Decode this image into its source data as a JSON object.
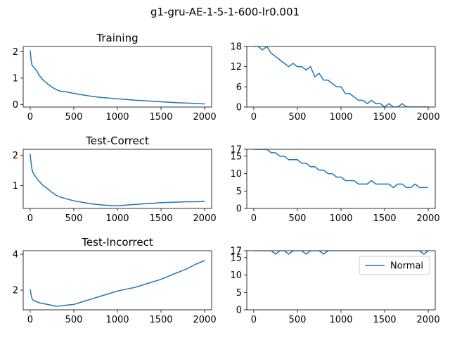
{
  "suptitle": "g1-gru-AE-1-5-1-600-lr0.001",
  "series_color": "#1f77b4",
  "legend": {
    "label": "Normal",
    "placement": "upper right",
    "panel": 5
  },
  "chart_data": [
    {
      "type": "line",
      "title": "Training",
      "xlim": [
        -80,
        2080
      ],
      "ylim": [
        -0.1,
        2.2
      ],
      "xticks": [
        0,
        500,
        1000,
        1500,
        2000
      ],
      "yticks": [
        0,
        1,
        2
      ],
      "x": [
        0,
        10,
        20,
        30,
        50,
        75,
        100,
        150,
        200,
        250,
        300,
        350,
        400,
        450,
        500,
        600,
        700,
        800,
        900,
        1000,
        1100,
        1200,
        1300,
        1400,
        1500,
        1600,
        1700,
        1800,
        1900,
        2000
      ],
      "y": [
        2.05,
        1.7,
        1.5,
        1.45,
        1.38,
        1.28,
        1.12,
        0.92,
        0.78,
        0.66,
        0.56,
        0.5,
        0.48,
        0.45,
        0.42,
        0.36,
        0.31,
        0.27,
        0.24,
        0.21,
        0.19,
        0.16,
        0.14,
        0.12,
        0.1,
        0.08,
        0.06,
        0.05,
        0.03,
        0.02
      ]
    },
    {
      "type": "line",
      "title": "",
      "xlim": [
        -80,
        2080
      ],
      "ylim": [
        0,
        18
      ],
      "xticks": [
        0,
        500,
        1000,
        1500,
        2000
      ],
      "yticks": [
        0,
        6,
        12,
        18
      ],
      "x": [
        0,
        50,
        100,
        150,
        200,
        250,
        300,
        350,
        400,
        450,
        500,
        550,
        600,
        650,
        700,
        750,
        800,
        850,
        900,
        950,
        1000,
        1050,
        1100,
        1150,
        1200,
        1250,
        1300,
        1350,
        1400,
        1450,
        1500,
        1550,
        1600,
        1650,
        1700,
        1750,
        1800,
        1850,
        1900,
        1950,
        2000
      ],
      "y": [
        18,
        18,
        17,
        18,
        16,
        15,
        14,
        13,
        12,
        13,
        12,
        12,
        11,
        12,
        9,
        10,
        8,
        8,
        7,
        6,
        6,
        4,
        4,
        3,
        2,
        2,
        1,
        2,
        1,
        1,
        0,
        1,
        0,
        0,
        1,
        0,
        0,
        0,
        0,
        0,
        0
      ]
    },
    {
      "type": "line",
      "title": "Test-Correct",
      "xlim": [
        -80,
        2080
      ],
      "ylim": [
        0.25,
        2.2
      ],
      "xticks": [
        0,
        500,
        1000,
        1500,
        2000
      ],
      "yticks": [
        1,
        2
      ],
      "x": [
        0,
        10,
        20,
        30,
        50,
        75,
        100,
        150,
        200,
        250,
        300,
        350,
        400,
        450,
        500,
        600,
        700,
        800,
        900,
        1000,
        1100,
        1200,
        1300,
        1400,
        1500,
        1600,
        1700,
        1800,
        1900,
        2000
      ],
      "y": [
        2.05,
        1.75,
        1.55,
        1.45,
        1.35,
        1.25,
        1.15,
        1.0,
        0.9,
        0.78,
        0.68,
        0.62,
        0.58,
        0.54,
        0.5,
        0.45,
        0.4,
        0.37,
        0.35,
        0.34,
        0.36,
        0.38,
        0.4,
        0.42,
        0.44,
        0.45,
        0.46,
        0.47,
        0.47,
        0.48
      ]
    },
    {
      "type": "line",
      "title": "",
      "xlim": [
        -80,
        2080
      ],
      "ylim": [
        0,
        17
      ],
      "xticks": [
        0,
        500,
        1000,
        1500,
        2000
      ],
      "yticks": [
        0,
        5,
        10,
        15,
        17
      ],
      "x": [
        0,
        50,
        100,
        150,
        200,
        250,
        300,
        350,
        400,
        450,
        500,
        550,
        600,
        650,
        700,
        750,
        800,
        850,
        900,
        950,
        1000,
        1050,
        1100,
        1150,
        1200,
        1250,
        1300,
        1350,
        1400,
        1450,
        1500,
        1550,
        1600,
        1650,
        1700,
        1750,
        1800,
        1850,
        1900,
        1950,
        2000
      ],
      "y": [
        17,
        17,
        17,
        17,
        16,
        16,
        15,
        15,
        14,
        14,
        14,
        13,
        13,
        12,
        12,
        11,
        11,
        10,
        10,
        9,
        9,
        8,
        8,
        8,
        7,
        7,
        7,
        8,
        7,
        7,
        7,
        7,
        6,
        7,
        7,
        6,
        6,
        7,
        6,
        6,
        6
      ]
    },
    {
      "type": "line",
      "title": "Test-Incorrect",
      "xlim": [
        -80,
        2080
      ],
      "ylim": [
        0.9,
        4.2
      ],
      "xticks": [
        0,
        500,
        1000,
        1500,
        2000
      ],
      "yticks": [
        2,
        4
      ],
      "x": [
        0,
        10,
        20,
        30,
        50,
        75,
        100,
        150,
        200,
        250,
        300,
        350,
        400,
        450,
        500,
        600,
        700,
        800,
        900,
        1000,
        1100,
        1200,
        1300,
        1400,
        1500,
        1600,
        1700,
        1800,
        1900,
        2000
      ],
      "y": [
        2.05,
        1.75,
        1.55,
        1.45,
        1.4,
        1.35,
        1.3,
        1.25,
        1.2,
        1.15,
        1.1,
        1.12,
        1.15,
        1.18,
        1.2,
        1.35,
        1.5,
        1.65,
        1.8,
        1.95,
        2.05,
        2.15,
        2.3,
        2.45,
        2.6,
        2.8,
        3.0,
        3.2,
        3.45,
        3.65
      ]
    },
    {
      "type": "line",
      "title": "",
      "xlim": [
        -80,
        2080
      ],
      "ylim": [
        0,
        17
      ],
      "xticks": [
        0,
        500,
        1000,
        1500,
        2000
      ],
      "yticks": [
        0,
        5,
        10,
        15,
        17
      ],
      "x": [
        0,
        50,
        100,
        150,
        200,
        250,
        300,
        350,
        400,
        450,
        500,
        550,
        600,
        650,
        700,
        750,
        800,
        850,
        900,
        950,
        1000,
        1050,
        1100,
        1150,
        1200,
        1250,
        1300,
        1350,
        1400,
        1450,
        1500,
        1550,
        1600,
        1650,
        1700,
        1750,
        1800,
        1850,
        1900,
        1950,
        2000
      ],
      "y": [
        17,
        17,
        17,
        17,
        17,
        16,
        17,
        17,
        16,
        17,
        17,
        17,
        16,
        17,
        17,
        17,
        16,
        17,
        17,
        17,
        17,
        17,
        17,
        17,
        17,
        17,
        17,
        17,
        17,
        17,
        17,
        17,
        17,
        17,
        17,
        17,
        17,
        17,
        17,
        16,
        17
      ]
    }
  ]
}
